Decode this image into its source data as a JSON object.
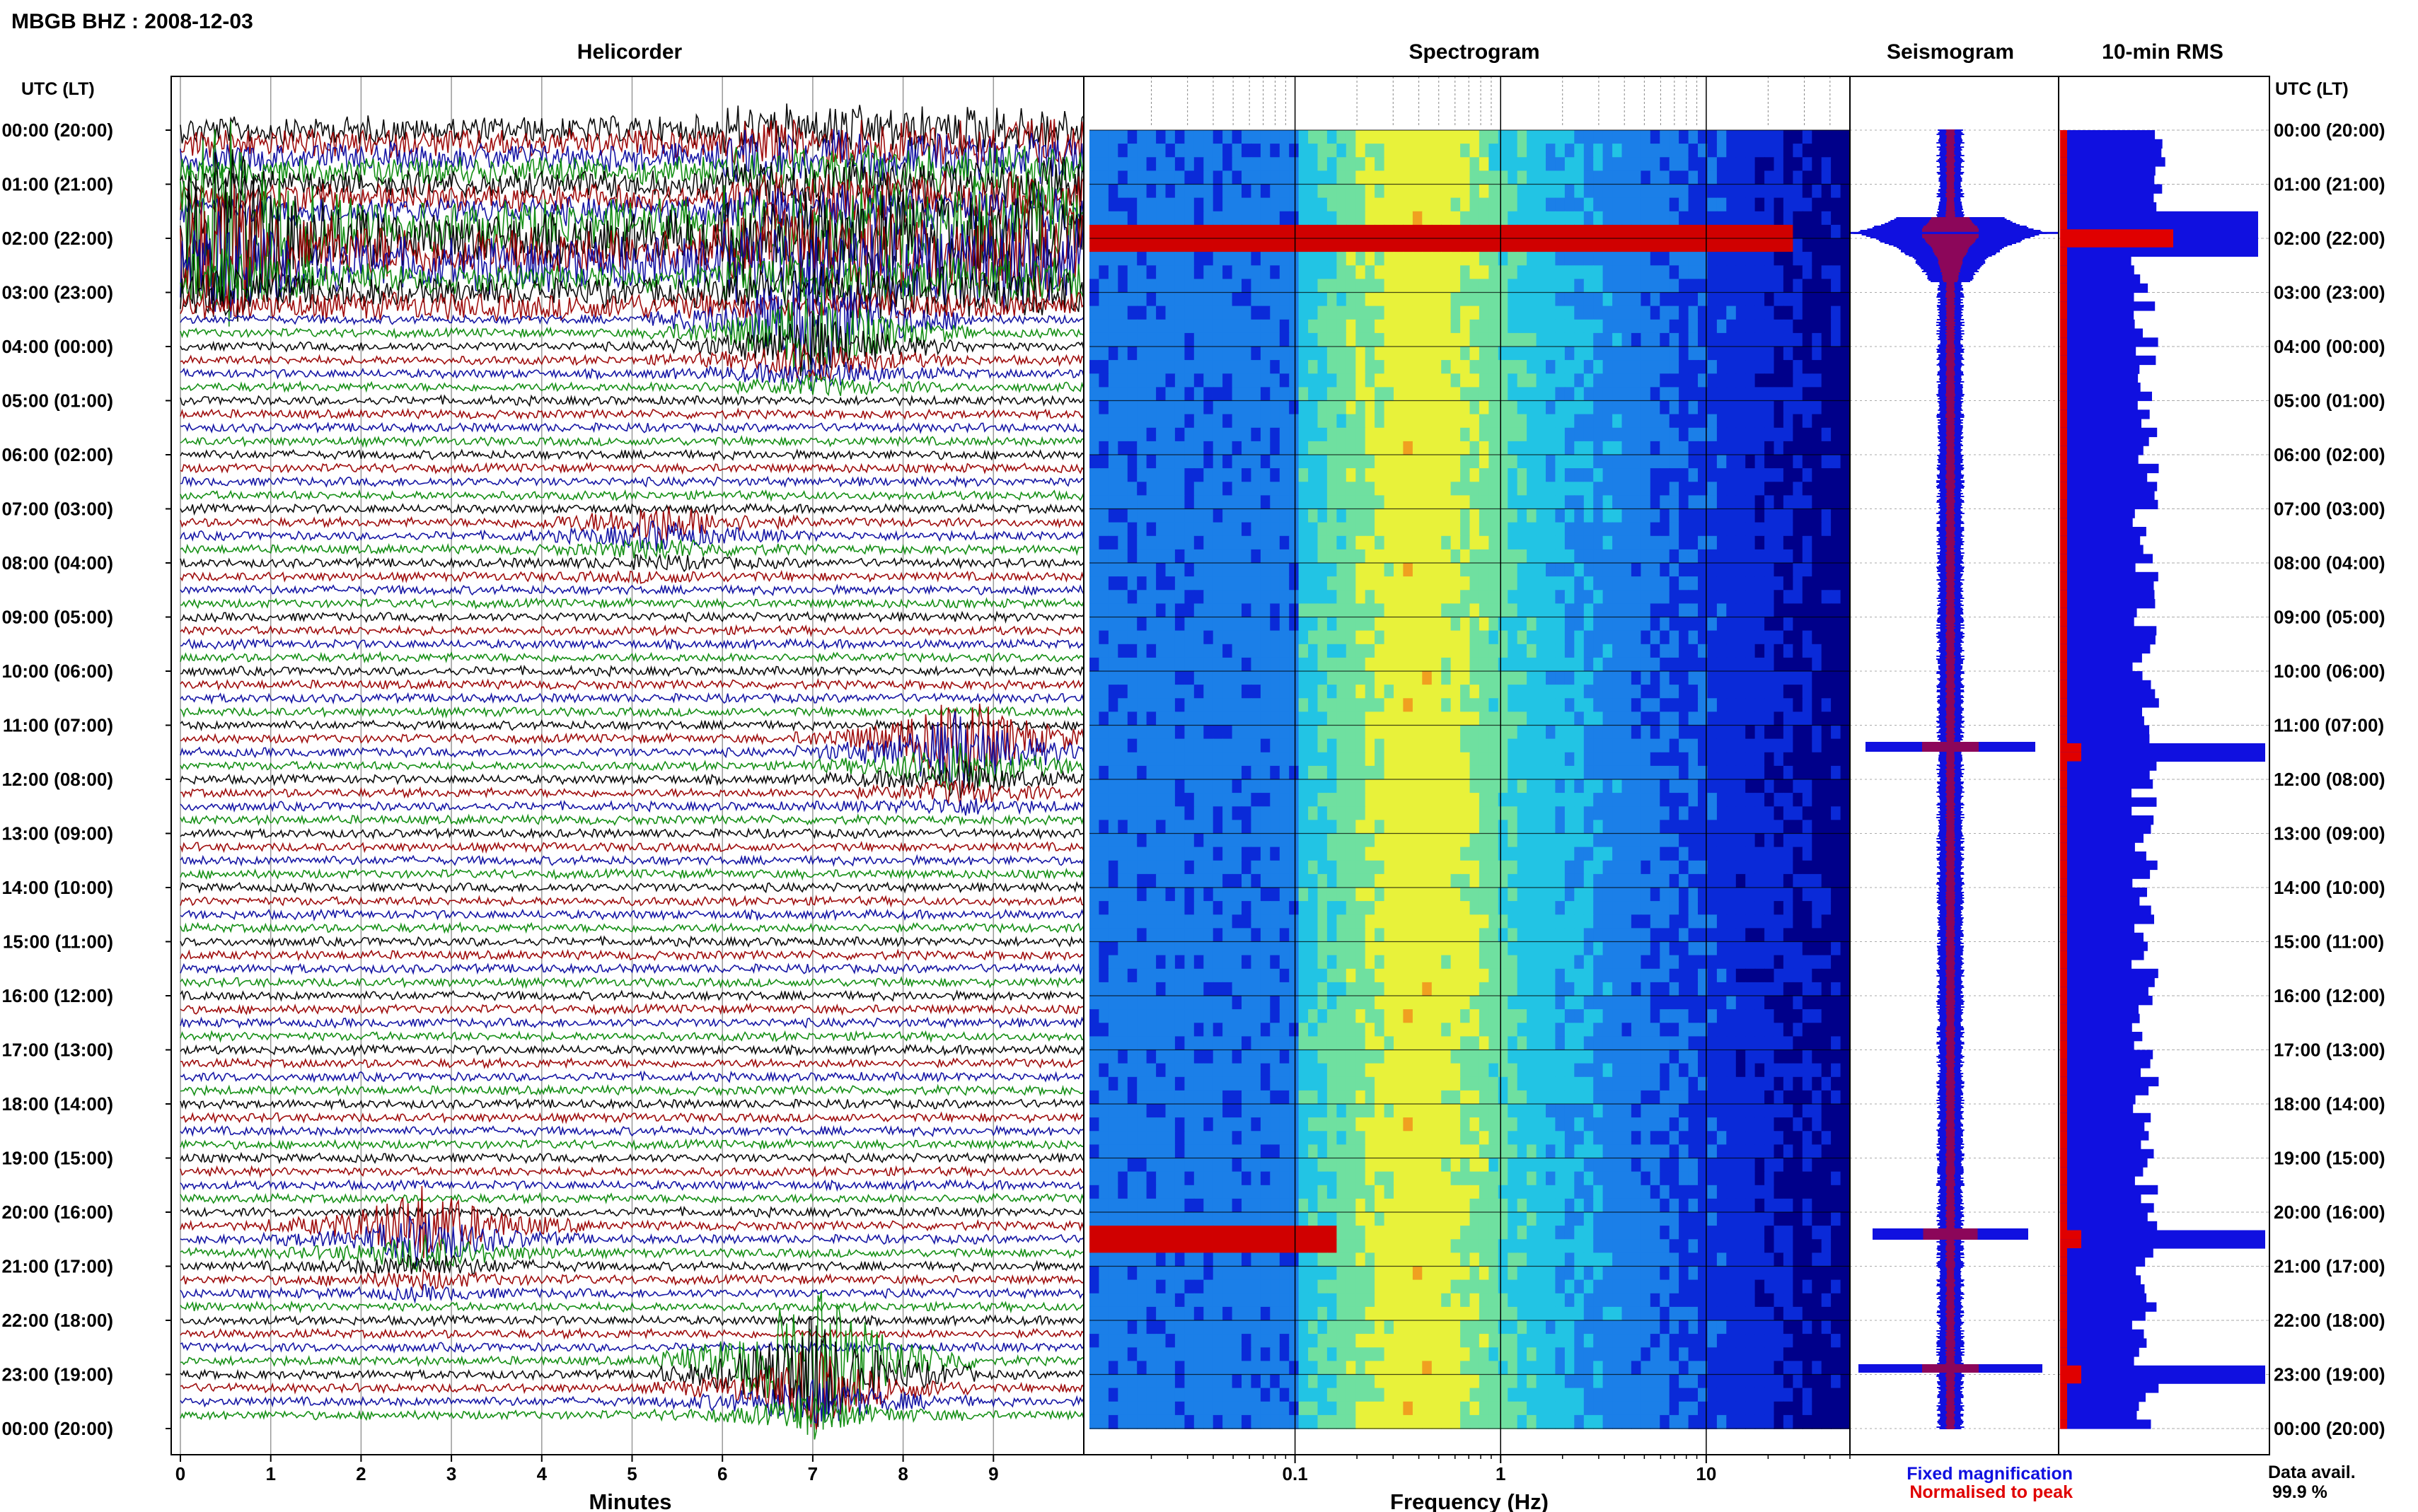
{
  "header": {
    "station": "MBGB BHZ : 2008-12-03",
    "panels": [
      "Helicorder",
      "Spectrogram",
      "Seismogram",
      "10-min RMS"
    ],
    "time_axis_label": "UTC (LT)",
    "x_labels": [
      "Minutes",
      "Frequency (Hz)"
    ]
  },
  "legend": {
    "fixed": "Fixed magnification",
    "normalised": "Normalised to peak",
    "fixed_color": "#1010e0",
    "normalised_color": "#e00000"
  },
  "availability": {
    "label": "Data avail.",
    "value": "99.9 %"
  },
  "chart_data": [
    {
      "type": "line",
      "title": "Helicorder",
      "xlabel": "Minutes",
      "x_ticks": [
        "0",
        "1",
        "2",
        "3",
        "4",
        "5",
        "6",
        "7",
        "8",
        "9"
      ],
      "xlim": [
        0,
        10
      ],
      "row_labels": [
        "00:00 (20:00)",
        "01:00 (21:00)",
        "02:00 (22:00)",
        "03:00 (23:00)",
        "04:00 (00:00)",
        "05:00 (01:00)",
        "06:00 (02:00)",
        "07:00 (03:00)",
        "08:00 (04:00)",
        "09:00 (05:00)",
        "10:00 (06:00)",
        "11:00 (07:00)",
        "12:00 (08:00)",
        "13:00 (09:00)",
        "14:00 (10:00)",
        "15:00 (11:00)",
        "16:00 (12:00)",
        "17:00 (13:00)",
        "18:00 (14:00)",
        "19:00 (15:00)",
        "20:00 (16:00)",
        "21:00 (17:00)",
        "22:00 (18:00)",
        "23:00 (19:00)",
        "00:00 (20:00)"
      ],
      "trace_colors": [
        "#000000",
        "#9a0000",
        "#0a0aa0",
        "#0a8a0a"
      ],
      "events": [
        {
          "hour": 1.9,
          "minute": 0.5,
          "amp": 1.0
        },
        {
          "hour": 22.8,
          "minute": 7.0,
          "amp": 0.9
        },
        {
          "hour": 11.4,
          "minute": 8.6,
          "amp": 0.5
        },
        {
          "hour": 20.3,
          "minute": 2.7,
          "amp": 0.4
        },
        {
          "hour": 7.3,
          "minute": 5.3,
          "amp": 0.2
        },
        {
          "hour": 3.6,
          "minute": 7.0,
          "amp": 0.7
        }
      ]
    },
    {
      "type": "heatmap",
      "title": "Spectrogram",
      "xlabel": "Frequency (Hz)",
      "x_scale": "log",
      "xlim": [
        0.01,
        50
      ],
      "x_ticks": [
        "0.1",
        "1",
        "10"
      ],
      "colormap": [
        "#00008a",
        "#0a2ad8",
        "#1b7fe8",
        "#22c4e4",
        "#6fe0a0",
        "#e8f23a",
        "#f0a020",
        "#d00000"
      ]
    },
    {
      "type": "line",
      "title": "Seismogram",
      "series": [
        {
          "name": "Fixed magnification",
          "color": "#1010e0"
        },
        {
          "name": "Normalised to peak",
          "color": "#e00000"
        }
      ]
    },
    {
      "type": "bar",
      "title": "10-min RMS",
      "orientation": "horizontal",
      "peaks_hours": [
        1.9,
        11.4,
        20.4,
        22.9
      ]
    }
  ]
}
